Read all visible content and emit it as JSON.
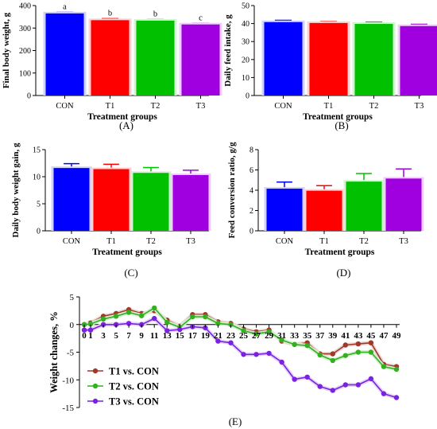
{
  "colors": {
    "CON": "#0000ff",
    "T1": "#ff0000",
    "T2": "#00c000",
    "T3": "#a000e0",
    "line_T1": "#a0392a",
    "line_T2": "#33b020",
    "line_T3": "#7a22e0",
    "error": "#666666"
  },
  "chart_data": [
    {
      "panel": "(A)",
      "type": "bar",
      "categories": [
        "CON",
        "T1",
        "T2",
        "T3"
      ],
      "values": [
        365,
        335,
        333,
        316
      ],
      "errors": [
        5,
        7,
        5,
        5
      ],
      "bar_labels": [
        "a",
        "b",
        "b",
        "c"
      ],
      "xlabel": "Treatment groups",
      "ylabel": "Final body weight, g",
      "ylim": [
        0,
        400
      ],
      "yticks": [
        0,
        100,
        200,
        300,
        400
      ],
      "grid": false
    },
    {
      "panel": "(B)",
      "type": "bar",
      "categories": [
        "CON",
        "T1",
        "T2",
        "T3"
      ],
      "values": [
        40.8,
        40.3,
        39.8,
        38.6
      ],
      "errors": [
        1.0,
        0.8,
        1.0,
        1.0
      ],
      "xlabel": "Treatment groups",
      "ylabel": "Daily feed intake, g",
      "ylim": [
        0,
        50
      ],
      "yticks": [
        0,
        10,
        20,
        30,
        40,
        50
      ],
      "grid": false
    },
    {
      "panel": "(C)",
      "type": "bar",
      "categories": [
        "CON",
        "T1",
        "T2",
        "T3"
      ],
      "values": [
        11.6,
        11.4,
        10.7,
        10.3
      ],
      "errors": [
        0.8,
        0.9,
        1.0,
        0.9
      ],
      "xlabel": "Treatment groups",
      "ylabel": "Daily body weight gain, g",
      "ylim": [
        0,
        15
      ],
      "yticks": [
        0,
        5,
        10,
        15
      ],
      "grid": false
    },
    {
      "panel": "(D)",
      "type": "bar",
      "categories": [
        "CON",
        "T1",
        "T2",
        "T3"
      ],
      "values": [
        4.15,
        3.95,
        4.85,
        5.15
      ],
      "errors": [
        0.65,
        0.5,
        0.8,
        0.95
      ],
      "xlabel": "Treatment groups",
      "ylabel": "Feed conversion ratio, g/g",
      "ylim": [
        0,
        8
      ],
      "yticks": [
        0,
        2,
        4,
        6,
        8
      ],
      "grid": false
    },
    {
      "panel": "(E)",
      "type": "line",
      "x": [
        0,
        1,
        3,
        5,
        7,
        9,
        11,
        13,
        15,
        17,
        19,
        21,
        23,
        25,
        27,
        29,
        31,
        33,
        35,
        37,
        39,
        41,
        43,
        45,
        47,
        49
      ],
      "xticks": [
        0,
        1,
        3,
        5,
        7,
        9,
        11,
        13,
        15,
        17,
        19,
        21,
        23,
        25,
        27,
        29,
        31,
        33,
        35,
        37,
        39,
        41,
        43,
        45,
        47,
        49
      ],
      "series": [
        {
          "name": "T1 vs. CON",
          "values": [
            0,
            0.3,
            1.5,
            2.0,
            2.7,
            2.0,
            2.5,
            0.8,
            -0.3,
            1.8,
            1.8,
            0.5,
            0.2,
            -0.8,
            -1.3,
            -1.0,
            -3.0,
            -3.6,
            -3.3,
            -5.3,
            -5.3,
            -3.7,
            -3.5,
            -3.3,
            -7.2,
            -7.6
          ]
        },
        {
          "name": "T2 vs. CON",
          "values": [
            0,
            0.1,
            1.0,
            1.5,
            2.2,
            1.6,
            3.0,
            0.4,
            -0.5,
            1.4,
            1.4,
            0.2,
            0.0,
            -1.1,
            -1.7,
            -1.3,
            -2.8,
            -3.6,
            -3.8,
            -5.5,
            -6.5,
            -5.6,
            -5.0,
            -5.0,
            -7.6,
            -8.1
          ]
        },
        {
          "name": "T3 vs. CON",
          "values": [
            -1.0,
            -1.0,
            0.0,
            0.0,
            0.2,
            0.0,
            1.1,
            -1.1,
            -0.9,
            -0.4,
            -0.6,
            -3.0,
            -3.3,
            -5.4,
            -5.4,
            -5.2,
            -6.8,
            -9.9,
            -9.5,
            -11.2,
            -11.9,
            -10.9,
            -10.9,
            -9.8,
            -12.5,
            -13.2
          ]
        }
      ],
      "ylabel": "Weight changes, %",
      "ylim": [
        -15,
        5
      ],
      "yticks": [
        5,
        0,
        -5,
        -10,
        -15
      ],
      "legend": "bottom-left",
      "grid": false
    }
  ]
}
